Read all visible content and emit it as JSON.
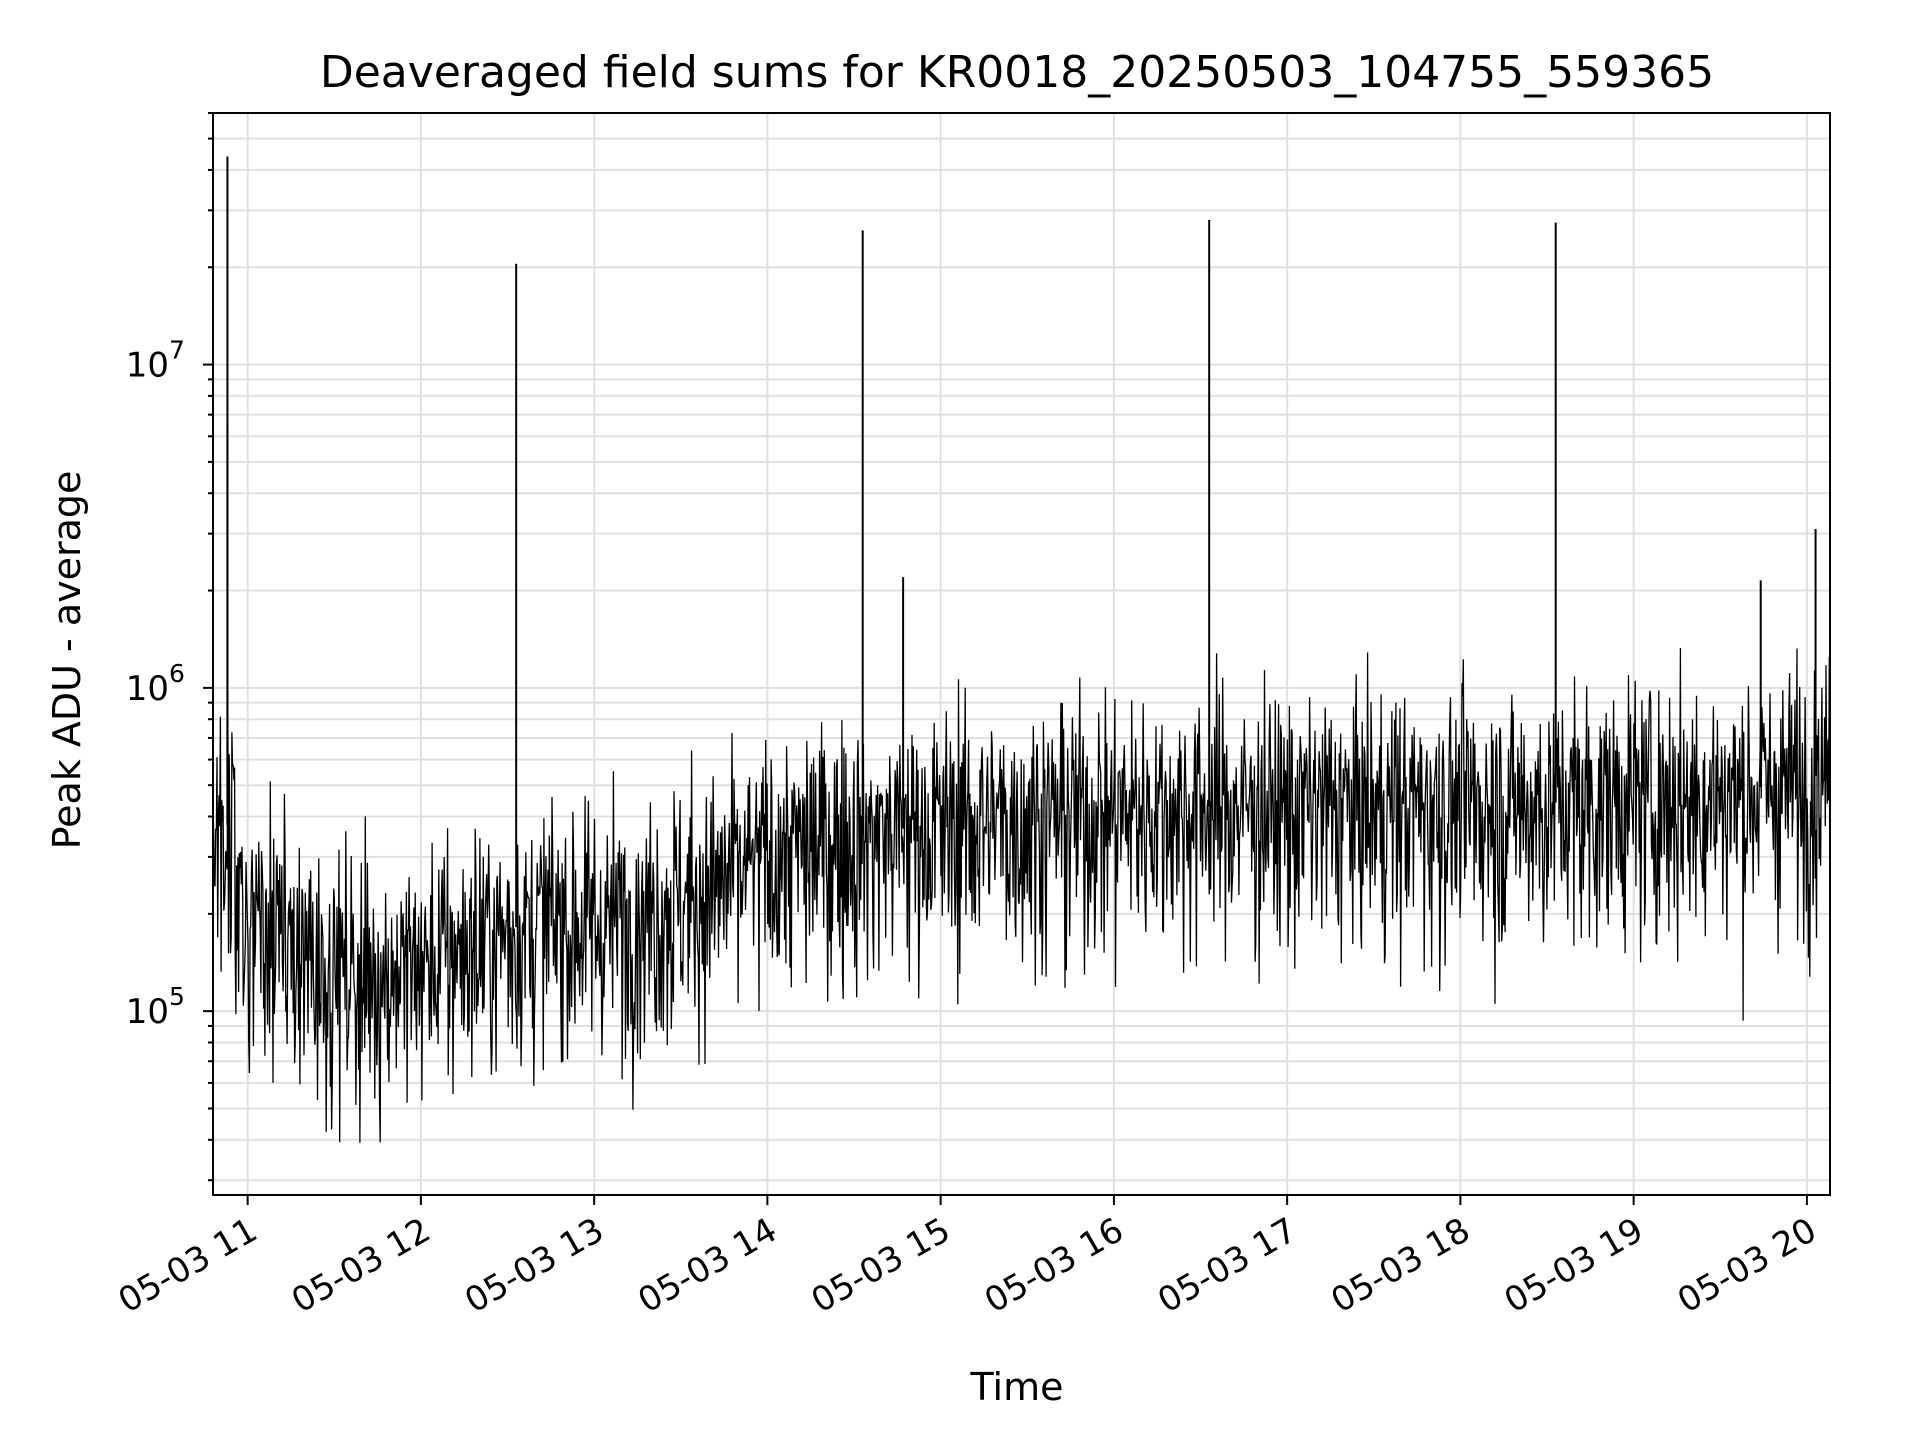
{
  "chart_data": {
    "type": "line",
    "title": "Deaveraged field sums for KR0018_20250503_104755_559365",
    "xlabel": "Time",
    "ylabel": "Peak ADU - average",
    "x_ticks": [
      "05-03 11",
      "05-03 12",
      "05-03 13",
      "05-03 14",
      "05-03 15",
      "05-03 16",
      "05-03 17",
      "05-03 18",
      "05-03 19",
      "05-03 20"
    ],
    "y_ticks": [
      {
        "base": "10",
        "exp": "5",
        "value": 100000
      },
      {
        "base": "10",
        "exp": "6",
        "value": 1000000
      },
      {
        "base": "10",
        "exp": "7",
        "value": 10000000
      }
    ],
    "xlim": [
      "2025-05-03 10:48",
      "2025-05-03 20:08"
    ],
    "ylim": [
      27000,
      60000000
    ],
    "yscale": "log",
    "grid": true,
    "line_color": "#000000",
    "grid_color": "#e0e0e0",
    "series": [
      {
        "x": [
          "2025-05-03 10:48",
          "2025-05-03 10:55",
          "2025-05-03 11:00",
          "2025-05-03 11:10",
          "2025-05-03 11:20",
          "2025-05-03 11:30",
          "2025-05-03 11:40",
          "2025-05-03 11:50",
          "2025-05-03 12:00",
          "2025-05-03 12:15",
          "2025-05-03 12:30",
          "2025-05-03 12:45",
          "2025-05-03 13:00",
          "2025-05-03 13:20",
          "2025-05-03 13:40",
          "2025-05-03 14:00",
          "2025-05-03 14:20",
          "2025-05-03 14:40",
          "2025-05-03 15:00",
          "2025-05-03 15:30",
          "2025-05-03 16:00",
          "2025-05-03 16:30",
          "2025-05-03 17:00",
          "2025-05-03 17:30",
          "2025-05-03 18:00",
          "2025-05-03 18:30",
          "2025-05-03 19:00",
          "2025-05-03 19:30",
          "2025-05-03 20:00",
          "2025-05-03 20:08"
        ],
        "y": [
          450000,
          350000,
          200000,
          170000,
          150000,
          140000,
          130000,
          135000,
          140000,
          160000,
          180000,
          190000,
          190000,
          210000,
          240000,
          300000,
          340000,
          360000,
          380000,
          400000,
          420000,
          430000,
          430000,
          430000,
          440000,
          440000,
          460000,
          470000,
          520000,
          560000
        ]
      }
    ],
    "spikes": [
      {
        "x": "2025-05-03 10:53",
        "y": 44000000
      },
      {
        "x": "2025-05-03 10:53",
        "y": 6500000
      },
      {
        "x": "2025-05-03 12:33",
        "y": 20500000
      },
      {
        "x": "2025-05-03 14:33",
        "y": 26000000
      },
      {
        "x": "2025-05-03 14:47",
        "y": 2200000
      },
      {
        "x": "2025-05-03 16:33",
        "y": 28000000
      },
      {
        "x": "2025-05-03 18:33",
        "y": 27500000
      },
      {
        "x": "2025-05-03 19:44",
        "y": 2150000
      },
      {
        "x": "2025-05-03 20:03",
        "y": 3100000
      }
    ],
    "noise": {
      "up_spread": 0.35,
      "down_spread": 0.45,
      "point_count": 2400
    }
  }
}
